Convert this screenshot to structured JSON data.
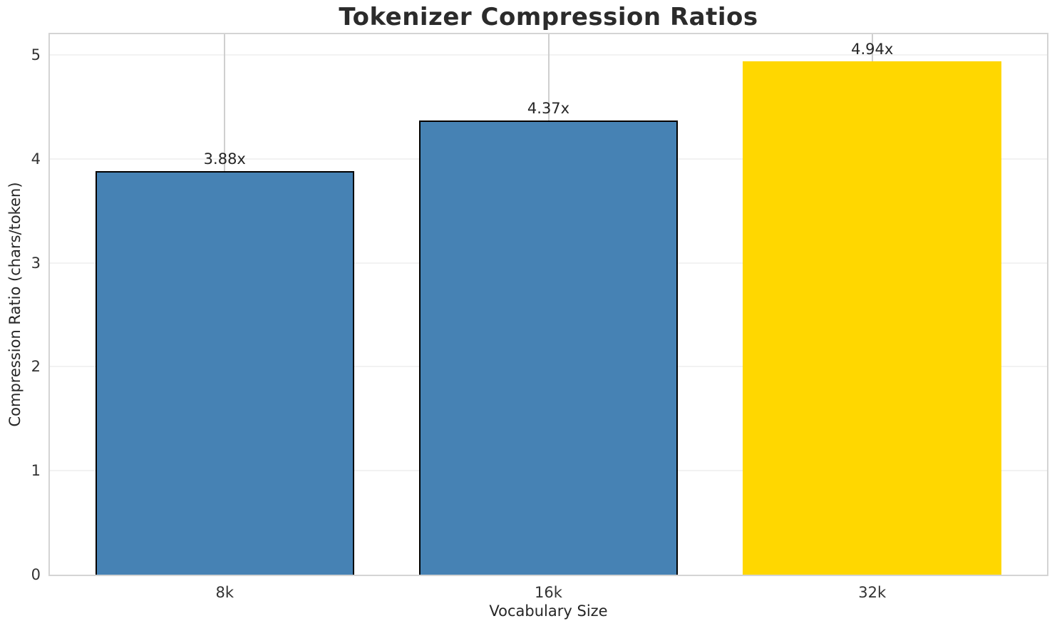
{
  "chart_data": {
    "type": "bar",
    "title": "Tokenizer Compression Ratios",
    "xlabel": "Vocabulary Size",
    "ylabel": "Compression Ratio (chars/token)",
    "categories": [
      "8k",
      "16k",
      "32k"
    ],
    "values": [
      3.88,
      4.37,
      4.94
    ],
    "bar_labels": [
      "3.88x",
      "4.37x",
      "4.94x"
    ],
    "bar_colors": [
      "#4682b4",
      "#4682b4",
      "#ffd700"
    ],
    "bar_edge_colors": [
      "#000000",
      "#000000",
      "none"
    ],
    "bar_edge_width": 2,
    "bar_width_fraction": 0.8,
    "ylim": [
      0,
      5.2
    ],
    "xlim": [
      -0.54,
      2.54
    ],
    "yticks": [
      "0",
      "1",
      "2",
      "3",
      "4",
      "5"
    ],
    "grid": {
      "horizontal": true,
      "vertical": true
    },
    "legend": "none",
    "styles": {
      "spine_color": "#d4d4d4",
      "gridline_h_color": "#f2f2f2",
      "gridline_v_color": "#cfcfcf",
      "title_color": "#2b2b2b",
      "tick_color": "#333333",
      "label_color": "#262626",
      "background": "#ffffff"
    }
  }
}
